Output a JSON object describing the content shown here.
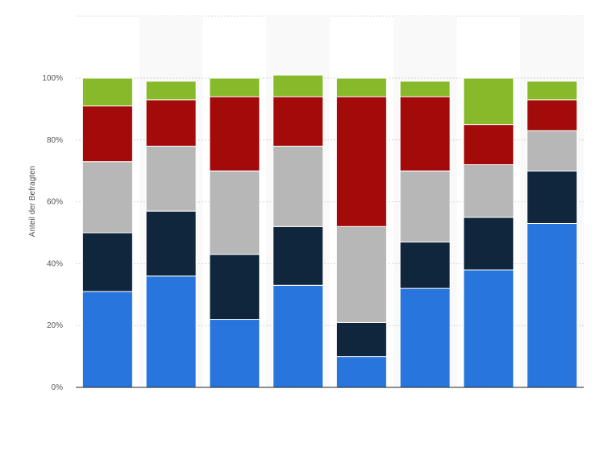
{
  "chart_data": {
    "type": "bar",
    "stacked": true,
    "title": "",
    "xlabel": "",
    "ylabel": "Anteil der Befragten",
    "ylim": [
      0,
      100
    ],
    "yticks": [
      "0%",
      "20%",
      "40%",
      "60%",
      "80%",
      "100%"
    ],
    "grid": true,
    "legend": "none",
    "categories": [
      "",
      "",
      "",
      "",
      "",
      "",
      "",
      ""
    ],
    "series": [
      {
        "color": "#2876dd",
        "values": [
          31,
          36,
          22,
          33,
          10,
          32,
          38,
          53
        ]
      },
      {
        "color": "#10263d",
        "values": [
          19,
          21,
          21,
          19,
          11,
          15,
          17,
          17
        ]
      },
      {
        "color": "#b7b7b7",
        "values": [
          23,
          21,
          27,
          26,
          31,
          23,
          17,
          13
        ]
      },
      {
        "color": "#a30a0a",
        "values": [
          18,
          15,
          24,
          16,
          42,
          24,
          13,
          10
        ]
      },
      {
        "color": "#86ba2a",
        "values": [
          9,
          6,
          6,
          7,
          6,
          5,
          15,
          6
        ]
      }
    ]
  }
}
